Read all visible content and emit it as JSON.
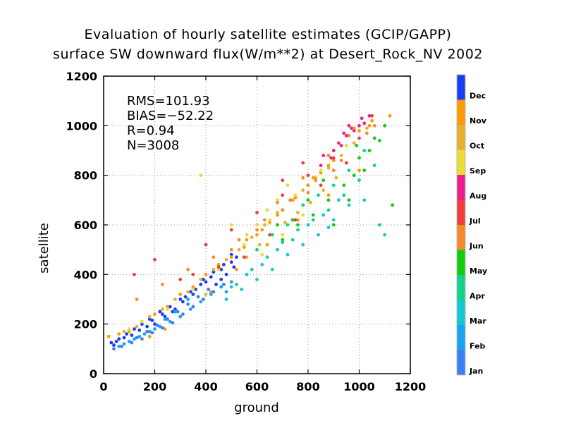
{
  "chart_data": {
    "type": "scatter",
    "title": "Evaluation of hourly satellite estimates (GCIP/GAPP)",
    "subtitle": "surface SW downward flux(W/m**2) at Desert_Rock_NV 2002",
    "xlabel": "ground",
    "ylabel": "satellite",
    "xlim": [
      0,
      1200
    ],
    "ylim": [
      0,
      1200
    ],
    "xticks": [
      "0",
      "200",
      "400",
      "600",
      "800",
      "1000",
      "1200"
    ],
    "yticks": [
      "0",
      "200",
      "400",
      "600",
      "800",
      "1000",
      "1200"
    ],
    "grid": true,
    "stats": [
      "RMS=101.93",
      "BIAS=−52.22",
      "R=0.94",
      "N=3008"
    ],
    "legend_placement": "right",
    "legend": [
      {
        "label": "Dec",
        "color": "#1a3cf5"
      },
      {
        "label": "Nov",
        "color": "#ff9900"
      },
      {
        "label": "Oct",
        "color": "#e6b030"
      },
      {
        "label": "Sep",
        "color": "#e8dd30"
      },
      {
        "label": "Aug",
        "color": "#f01e8c"
      },
      {
        "label": "Jul",
        "color": "#f23c3c"
      },
      {
        "label": "Jun",
        "color": "#f58a2a"
      },
      {
        "label": "May",
        "color": "#11cc11"
      },
      {
        "label": "Apr",
        "color": "#10d38a"
      },
      {
        "label": "Mar",
        "color": "#12c8d2"
      },
      {
        "label": "Feb",
        "color": "#1aa4f0"
      },
      {
        "label": "Jan",
        "color": "#3a7ff5"
      }
    ],
    "series": [
      {
        "name": "Dec",
        "points": [
          [
            30,
            125
          ],
          [
            60,
            140
          ],
          [
            90,
            160
          ],
          [
            120,
            180
          ],
          [
            150,
            200
          ],
          [
            180,
            220
          ],
          [
            220,
            250
          ],
          [
            260,
            270
          ],
          [
            300,
            300
          ],
          [
            340,
            330
          ],
          [
            380,
            360
          ],
          [
            420,
            390
          ],
          [
            460,
            420
          ],
          [
            500,
            450
          ],
          [
            520,
            470
          ],
          [
            480,
            400
          ],
          [
            440,
            360
          ],
          [
            400,
            370
          ],
          [
            360,
            340
          ],
          [
            320,
            310
          ],
          [
            280,
            260
          ],
          [
            240,
            230
          ],
          [
            200,
            200
          ],
          [
            170,
            190
          ],
          [
            140,
            175
          ],
          [
            110,
            155
          ],
          [
            80,
            145
          ],
          [
            50,
            130
          ],
          [
            40,
            115
          ],
          [
            470,
            440
          ],
          [
            430,
            410
          ],
          [
            390,
            380
          ],
          [
            350,
            320
          ],
          [
            310,
            290
          ],
          [
            270,
            250
          ],
          [
            230,
            240
          ],
          [
            190,
            215
          ],
          [
            500,
            480
          ],
          [
            510,
            430
          ],
          [
            460,
            380
          ]
        ]
      },
      {
        "name": "Nov",
        "points": [
          [
            20,
            150
          ],
          [
            60,
            160
          ],
          [
            100,
            170
          ],
          [
            150,
            210
          ],
          [
            200,
            240
          ],
          [
            250,
            270
          ],
          [
            300,
            320
          ],
          [
            350,
            350
          ],
          [
            400,
            400
          ],
          [
            450,
            440
          ],
          [
            500,
            470
          ],
          [
            550,
            510
          ],
          [
            600,
            560
          ],
          [
            650,
            610
          ],
          [
            700,
            660
          ],
          [
            750,
            710
          ],
          [
            800,
            760
          ],
          [
            850,
            810
          ],
          [
            900,
            860
          ],
          [
            950,
            920
          ],
          [
            1000,
            980
          ],
          [
            1050,
            1020
          ],
          [
            1120,
            1040
          ],
          [
            560,
            540
          ],
          [
            620,
            580
          ],
          [
            680,
            640
          ],
          [
            740,
            700
          ],
          [
            820,
            790
          ],
          [
            880,
            840
          ],
          [
            960,
            960
          ],
          [
            1040,
            1000
          ],
          [
            240,
            180
          ],
          [
            180,
            150
          ],
          [
            300,
            230
          ],
          [
            420,
            330
          ],
          [
            520,
            420
          ],
          [
            640,
            520
          ],
          [
            760,
            620
          ],
          [
            880,
            720
          ],
          [
            1000,
            820
          ]
        ]
      },
      {
        "name": "Oct",
        "points": [
          [
            80,
            170
          ],
          [
            130,
            190
          ],
          [
            180,
            230
          ],
          [
            230,
            260
          ],
          [
            280,
            300
          ],
          [
            330,
            330
          ],
          [
            380,
            380
          ],
          [
            430,
            420
          ],
          [
            480,
            460
          ],
          [
            530,
            500
          ],
          [
            580,
            550
          ],
          [
            630,
            600
          ],
          [
            680,
            650
          ],
          [
            730,
            700
          ],
          [
            780,
            740
          ],
          [
            830,
            790
          ],
          [
            880,
            830
          ],
          [
            930,
            880
          ],
          [
            980,
            930
          ],
          [
            1030,
            990
          ],
          [
            560,
            470
          ],
          [
            610,
            520
          ],
          [
            660,
            560
          ],
          [
            710,
            610
          ],
          [
            760,
            650
          ],
          [
            810,
            690
          ],
          [
            860,
            740
          ],
          [
            910,
            790
          ],
          [
            350,
            270
          ],
          [
            400,
            320
          ]
        ]
      },
      {
        "name": "Sep",
        "points": [
          [
            100,
            180
          ],
          [
            150,
            210
          ],
          [
            250,
            260
          ],
          [
            350,
            340
          ],
          [
            450,
            420
          ],
          [
            550,
            520
          ],
          [
            650,
            620
          ],
          [
            750,
            720
          ],
          [
            850,
            820
          ],
          [
            950,
            920
          ],
          [
            600,
            600
          ],
          [
            680,
            700
          ],
          [
            720,
            760
          ],
          [
            640,
            660
          ],
          [
            560,
            560
          ],
          [
            380,
            800
          ],
          [
            500,
            600
          ],
          [
            620,
            480
          ],
          [
            700,
            560
          ],
          [
            780,
            640
          ]
        ]
      },
      {
        "name": "Aug",
        "points": [
          [
            860,
            880
          ],
          [
            900,
            900
          ],
          [
            920,
            930
          ],
          [
            950,
            960
          ],
          [
            980,
            980
          ],
          [
            1000,
            1000
          ],
          [
            1020,
            1010
          ],
          [
            1040,
            1040
          ],
          [
            970,
            990
          ],
          [
            930,
            920
          ],
          [
            890,
            870
          ],
          [
            850,
            840
          ],
          [
            1010,
            1030
          ],
          [
            940,
            970
          ],
          [
            960,
            1000
          ]
        ]
      },
      {
        "name": "Jul",
        "points": [
          [
            120,
            400
          ],
          [
            200,
            460
          ],
          [
            300,
            380
          ],
          [
            400,
            520
          ],
          [
            500,
            580
          ],
          [
            600,
            650
          ],
          [
            700,
            720
          ],
          [
            800,
            800
          ],
          [
            900,
            870
          ],
          [
            1000,
            950
          ],
          [
            1050,
            1040
          ],
          [
            850,
            760
          ],
          [
            950,
            850
          ],
          [
            650,
            560
          ],
          [
            750,
            620
          ],
          [
            550,
            470
          ],
          [
            450,
            430
          ],
          [
            350,
            400
          ],
          [
            700,
            780
          ],
          [
            780,
            850
          ]
        ]
      },
      {
        "name": "Jun",
        "points": [
          [
            130,
            300
          ],
          [
            230,
            360
          ],
          [
            330,
            420
          ],
          [
            430,
            470
          ],
          [
            530,
            540
          ],
          [
            630,
            620
          ],
          [
            730,
            700
          ],
          [
            830,
            780
          ],
          [
            930,
            860
          ],
          [
            1030,
            970
          ],
          [
            1060,
            1000
          ],
          [
            900,
            820
          ],
          [
            800,
            730
          ],
          [
            700,
            660
          ],
          [
            600,
            580
          ],
          [
            500,
            500
          ],
          [
            680,
            690
          ],
          [
            780,
            790
          ],
          [
            880,
            880
          ],
          [
            980,
            990
          ]
        ]
      },
      {
        "name": "May",
        "points": [
          [
            700,
            540
          ],
          [
            760,
            600
          ],
          [
            820,
            640
          ],
          [
            880,
            700
          ],
          [
            940,
            760
          ],
          [
            980,
            800
          ],
          [
            1000,
            870
          ],
          [
            1040,
            900
          ],
          [
            1080,
            940
          ],
          [
            1100,
            1000
          ],
          [
            1130,
            680
          ],
          [
            900,
            600
          ],
          [
            960,
            700
          ],
          [
            1020,
            820
          ],
          [
            860,
            780
          ],
          [
            800,
            700
          ],
          [
            740,
            620
          ],
          [
            680,
            600
          ],
          [
            1060,
            950
          ],
          [
            990,
            920
          ]
        ]
      },
      {
        "name": "Apr",
        "points": [
          [
            520,
            360
          ],
          [
            580,
            420
          ],
          [
            640,
            470
          ],
          [
            700,
            530
          ],
          [
            760,
            580
          ],
          [
            820,
            620
          ],
          [
            880,
            660
          ],
          [
            940,
            720
          ],
          [
            1000,
            780
          ],
          [
            1060,
            840
          ],
          [
            600,
            500
          ],
          [
            660,
            560
          ],
          [
            720,
            600
          ],
          [
            780,
            680
          ],
          [
            840,
            720
          ],
          [
            900,
            760
          ],
          [
            960,
            820
          ],
          [
            1020,
            900
          ],
          [
            1080,
            600
          ],
          [
            560,
            400
          ]
        ]
      },
      {
        "name": "Mar",
        "points": [
          [
            480,
            300
          ],
          [
            540,
            340
          ],
          [
            600,
            380
          ],
          [
            660,
            420
          ],
          [
            720,
            480
          ],
          [
            780,
            520
          ],
          [
            840,
            560
          ],
          [
            900,
            620
          ],
          [
            960,
            680
          ],
          [
            1020,
            700
          ],
          [
            500,
            350
          ],
          [
            560,
            400
          ],
          [
            620,
            440
          ],
          [
            680,
            500
          ],
          [
            740,
            540
          ],
          [
            800,
            600
          ],
          [
            860,
            640
          ],
          [
            920,
            700
          ],
          [
            1100,
            560
          ],
          [
            880,
            590
          ]
        ]
      },
      {
        "name": "Feb",
        "points": [
          [
            60,
            110
          ],
          [
            100,
            130
          ],
          [
            140,
            150
          ],
          [
            180,
            170
          ],
          [
            220,
            190
          ],
          [
            260,
            210
          ],
          [
            300,
            230
          ],
          [
            340,
            260
          ],
          [
            380,
            290
          ],
          [
            420,
            320
          ],
          [
            460,
            350
          ],
          [
            330,
            300
          ],
          [
            280,
            250
          ],
          [
            240,
            220
          ],
          [
            200,
            180
          ],
          [
            160,
            160
          ],
          [
            120,
            140
          ],
          [
            80,
            120
          ],
          [
            480,
            330
          ],
          [
            500,
            370
          ]
        ]
      },
      {
        "name": "Jan",
        "points": [
          [
            40,
            100
          ],
          [
            70,
            110
          ],
          [
            110,
            125
          ],
          [
            150,
            140
          ],
          [
            190,
            165
          ],
          [
            230,
            185
          ],
          [
            270,
            205
          ],
          [
            310,
            240
          ],
          [
            350,
            270
          ],
          [
            390,
            300
          ],
          [
            430,
            330
          ],
          [
            470,
            360
          ],
          [
            410,
            340
          ],
          [
            370,
            310
          ],
          [
            330,
            280
          ],
          [
            290,
            250
          ],
          [
            250,
            220
          ],
          [
            210,
            195
          ],
          [
            170,
            170
          ],
          [
            130,
            145
          ]
        ]
      }
    ]
  }
}
